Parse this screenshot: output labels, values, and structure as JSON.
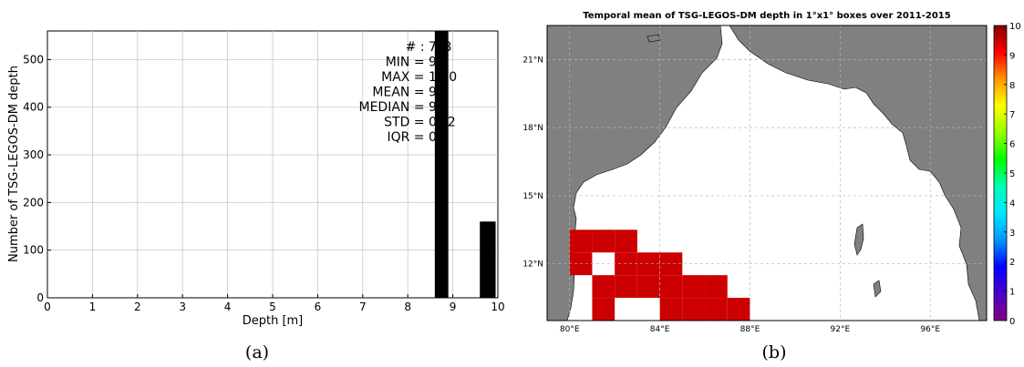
{
  "chart_data": [
    {
      "type": "bar",
      "panel_label": "(a)",
      "xlabel": "Depth [m]",
      "ylabel": "Number of TSG-LEGOS-DM depth",
      "xlim": [
        0,
        10
      ],
      "ylim": [
        0,
        560
      ],
      "xticks": [
        "0",
        "1",
        "2",
        "3",
        "4",
        "5",
        "6",
        "7",
        "8",
        "9",
        "10"
      ],
      "yticks": [
        "0",
        "100",
        "200",
        "300",
        "400",
        "500"
      ],
      "grid": true,
      "bars": [
        {
          "x0": 8.6,
          "x1": 8.9,
          "value": 560
        },
        {
          "x0": 9.6,
          "x1": 9.95,
          "value": 160
        }
      ],
      "stats": [
        {
          "label": "# : ",
          "value": "7?8"
        },
        {
          "label": "MIN = ",
          "value": "9.0"
        },
        {
          "label": "MAX = ",
          "value": "10.0"
        },
        {
          "label": "MEAN = ",
          "value": "9.2"
        },
        {
          "label": "MEDIAN = ",
          "value": "9.0"
        },
        {
          "label": "STD = ",
          "value": "0.?2"
        },
        {
          "label": "IQR = ",
          "value": "0.0"
        }
      ],
      "bar_color": "#000000"
    },
    {
      "type": "heatmap",
      "panel_label": "(b)",
      "title": "Temporal mean of TSG-LEGOS-DM depth in 1°x1° boxes over 2011-2015",
      "lon_range": [
        79,
        98.5
      ],
      "lat_range": [
        9.5,
        22.5
      ],
      "xticks": [
        {
          "lon": 80,
          "label": "80°E"
        },
        {
          "lon": 84,
          "label": "84°E"
        },
        {
          "lon": 88,
          "label": "88°E"
        },
        {
          "lon": 92,
          "label": "92°E"
        },
        {
          "lon": 96,
          "label": "96°E"
        }
      ],
      "yticks": [
        {
          "lat": 12,
          "label": "12°N"
        },
        {
          "lat": 15,
          "label": "15°N"
        },
        {
          "lat": 18,
          "label": "18°N"
        },
        {
          "lat": 21,
          "label": "21°N"
        }
      ],
      "cells": [
        {
          "lon": 80.5,
          "lat": 13
        },
        {
          "lon": 81.5,
          "lat": 13
        },
        {
          "lon": 82.5,
          "lat": 13
        },
        {
          "lon": 80.5,
          "lat": 12
        },
        {
          "lon": 82.5,
          "lat": 12
        },
        {
          "lon": 83.5,
          "lat": 12
        },
        {
          "lon": 84.5,
          "lat": 12
        },
        {
          "lon": 81.5,
          "lat": 11
        },
        {
          "lon": 82.5,
          "lat": 11
        },
        {
          "lon": 83.5,
          "lat": 11
        },
        {
          "lon": 84.5,
          "lat": 11
        },
        {
          "lon": 85.5,
          "lat": 11
        },
        {
          "lon": 86.5,
          "lat": 11
        },
        {
          "lon": 81.5,
          "lat": 10
        },
        {
          "lon": 84.5,
          "lat": 10
        },
        {
          "lon": 85.5,
          "lat": 10
        },
        {
          "lon": 86.5,
          "lat": 10
        },
        {
          "lon": 87.5,
          "lat": 10
        },
        {
          "lon": 86.5,
          "lat": 9
        },
        {
          "lon": 87.5,
          "lat": 9
        }
      ],
      "cell_color": "#cc0000",
      "land_color": "#808080",
      "colorbar": {
        "range": [
          0,
          10
        ],
        "ticks": [
          "0",
          "1",
          "2",
          "3",
          "4",
          "5",
          "6",
          "7",
          "8",
          "9",
          "10"
        ],
        "colors": [
          "#800080",
          "#4b00c8",
          "#0000ff",
          "#0096ff",
          "#00e6ff",
          "#00ffb4",
          "#00ff00",
          "#96ff00",
          "#ffff00",
          "#ff9600",
          "#ff0000",
          "#800000"
        ]
      }
    }
  ]
}
